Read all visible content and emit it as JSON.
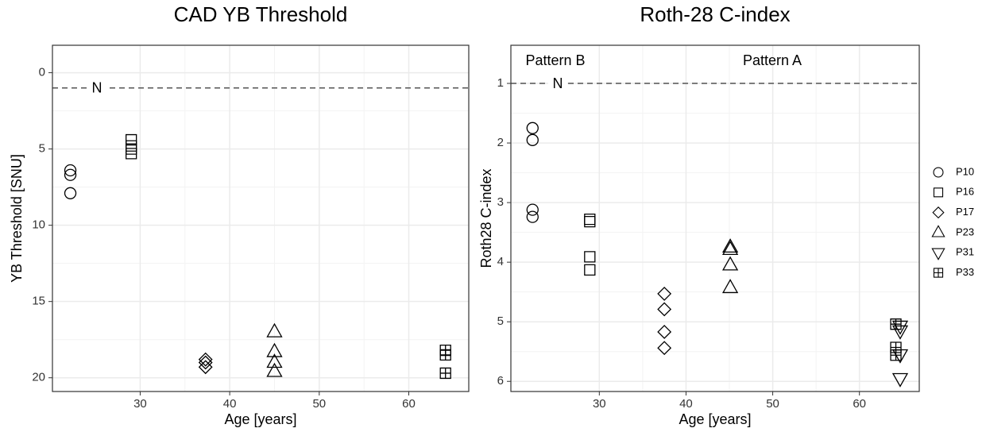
{
  "chart_data": [
    {
      "type": "scatter",
      "title": "CAD YB Threshold",
      "x_label": "Age [years]",
      "y_label": "YB Threshold [SNU]",
      "xlim": [
        20.2,
        66.7
      ],
      "ylim": [
        20.9,
        -1.8
      ],
      "xticks": [
        30,
        40,
        50,
        60
      ],
      "yticks": [
        0,
        5,
        10,
        15,
        20
      ],
      "grid": true,
      "minor_grid": true,
      "hline": 1,
      "annotations": [
        "N"
      ],
      "color": "#000000",
      "series": [
        {
          "marker": "circle",
          "x": [
            22.2,
            22.2,
            22.2
          ],
          "values": [
            6.4,
            6.7,
            7.9
          ]
        },
        {
          "marker": "square",
          "x": [
            29.0,
            29.0,
            29.0,
            29.0
          ],
          "values": [
            4.4,
            4.8,
            5.0,
            5.3
          ]
        },
        {
          "marker": "diamond",
          "x": [
            37.3,
            37.3,
            37.3
          ],
          "values": [
            18.8,
            19.0,
            19.3
          ]
        },
        {
          "marker": "triangle-up",
          "x": [
            45.0,
            45.0,
            45.0,
            45.0
          ],
          "values": [
            17.0,
            18.3,
            19.0,
            19.6
          ]
        },
        {
          "marker": "square-cross",
          "x": [
            64.1,
            64.1,
            64.1
          ],
          "values": [
            18.2,
            18.5,
            19.7
          ]
        }
      ]
    },
    {
      "type": "scatter",
      "title": "Roth-28 C-index",
      "x_label": "Age [years]",
      "y_label": "Roth28 C-index",
      "xlim": [
        19.8,
        66.9
      ],
      "ylim": [
        6.17,
        0.36
      ],
      "xticks": [
        30,
        40,
        50,
        60
      ],
      "yticks": [
        1,
        2,
        3,
        4,
        5,
        6
      ],
      "grid": true,
      "minor_grid": true,
      "hline": 1,
      "annotations": [
        "N",
        "Pattern B",
        "Pattern A"
      ],
      "color": "#000000",
      "legend": "right",
      "series": [
        {
          "name": "P10",
          "marker": "circle",
          "x": [
            22.3,
            22.3,
            22.3,
            22.3
          ],
          "values": [
            1.75,
            1.95,
            3.12,
            3.24
          ]
        },
        {
          "name": "P16",
          "marker": "square",
          "x": [
            28.9,
            28.9,
            28.9,
            28.9
          ],
          "values": [
            3.28,
            3.32,
            3.91,
            4.13
          ]
        },
        {
          "name": "P17",
          "marker": "diamond",
          "x": [
            37.5,
            37.5,
            37.5,
            37.5
          ],
          "values": [
            4.53,
            4.79,
            5.17,
            5.44
          ]
        },
        {
          "name": "P23",
          "marker": "triangle-up",
          "x": [
            45.1,
            45.1,
            45.1,
            45.1
          ],
          "values": [
            3.75,
            3.79,
            4.05,
            4.43
          ]
        },
        {
          "name": "P31",
          "marker": "triangle-down",
          "x": [
            64.7,
            64.7,
            64.7,
            64.7
          ],
          "values": [
            5.07,
            5.15,
            5.55,
            5.95
          ]
        },
        {
          "name": "P33",
          "marker": "square-cross",
          "x": [
            64.2,
            64.2,
            64.2
          ],
          "values": [
            5.04,
            5.43,
            5.56
          ]
        }
      ]
    }
  ]
}
